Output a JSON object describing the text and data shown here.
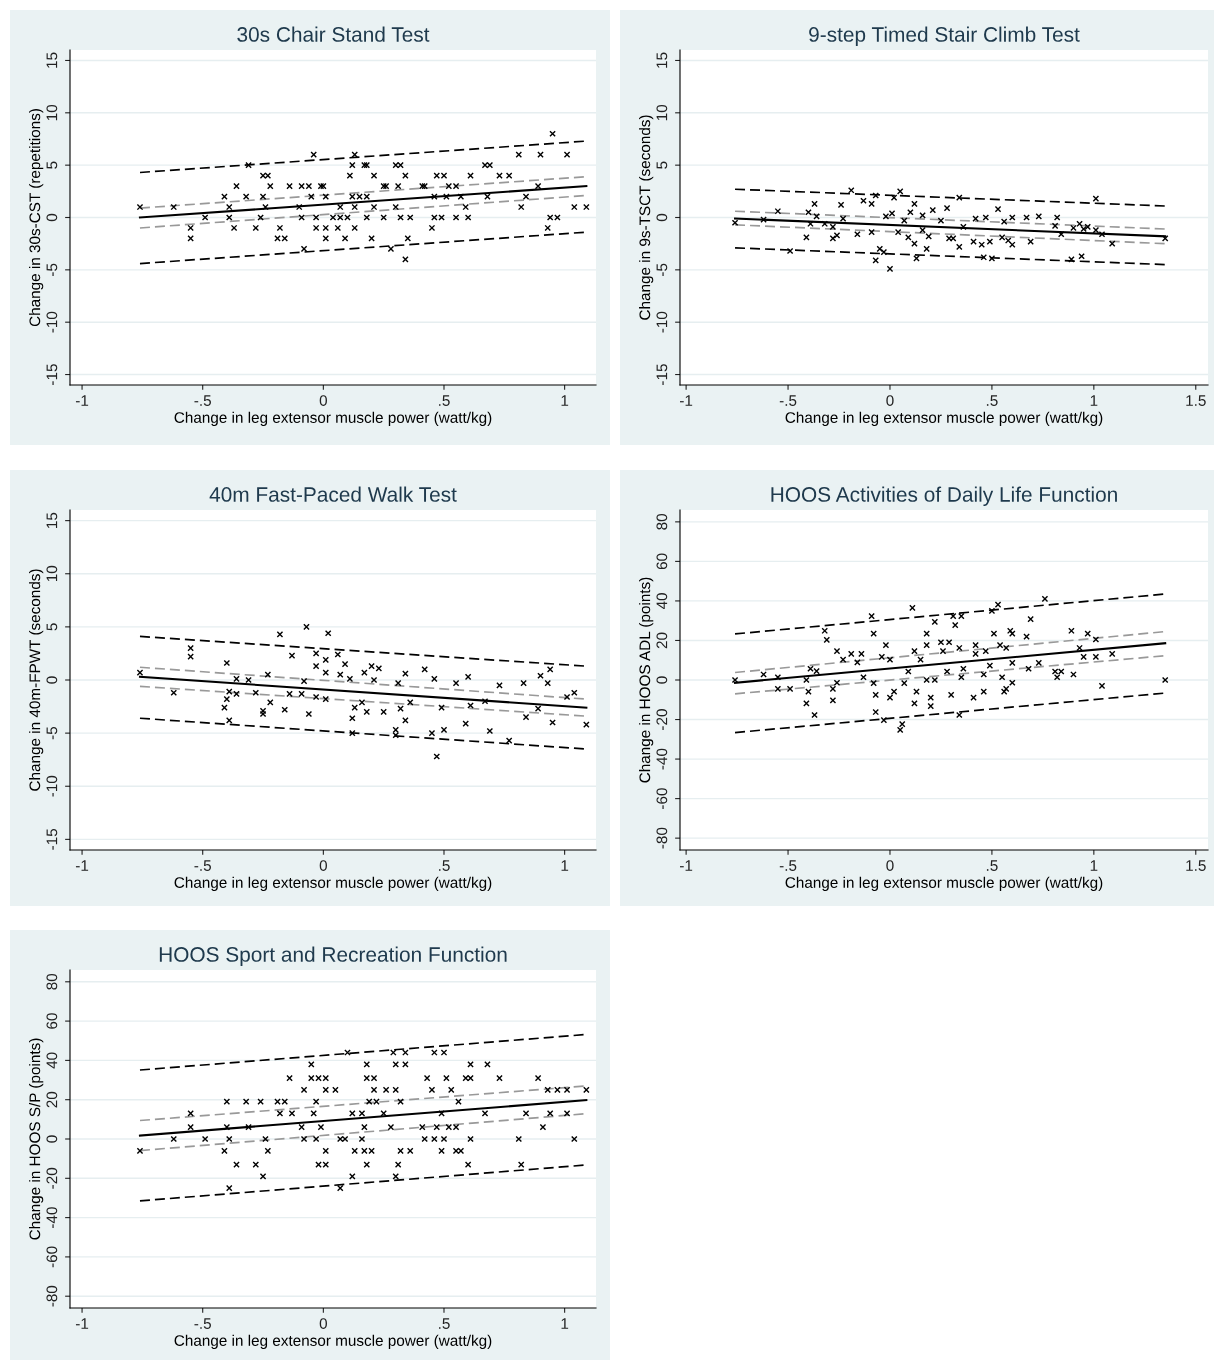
{
  "chart_data": [
    {
      "type": "scatter",
      "title": "30s Chair Stand Test",
      "xlabel": "Change in leg extensor muscle power (watt/kg)",
      "ylabel": "Change in 30s-CST (repetitions)",
      "xlim": [
        -1.05,
        1.13
      ],
      "ylim": [
        -16,
        16
      ],
      "xticks": [
        {
          "value": -1,
          "label": "-1"
        },
        {
          "value": -0.5,
          "label": "-.5"
        },
        0,
        {
          "value": 0.5,
          "label": ".5"
        },
        1
      ],
      "yticks": [
        -15,
        -10,
        -5,
        0,
        5,
        10,
        15
      ],
      "grid": "y",
      "series": [
        {
          "type": "scatter",
          "color": "#000000",
          "marker": "cross",
          "x": [
            -0.76,
            -0.62,
            -0.55,
            -0.55,
            -0.49,
            -0.41,
            -0.39,
            -0.39,
            -0.37,
            -0.36,
            -0.32,
            -0.31,
            -0.28,
            -0.26,
            -0.25,
            -0.25,
            -0.23,
            -0.22,
            -0.24,
            -0.19,
            -0.16,
            -0.18,
            -0.14,
            -0.1,
            -0.09,
            -0.09,
            -0.08,
            -0.06,
            -0.05,
            -0.04,
            -0.03,
            -0.03,
            -0.01,
            0.0,
            0.01,
            0.01,
            0.01,
            0.04,
            0.06,
            0.07,
            0.07,
            0.09,
            0.1,
            0.11,
            0.12,
            0.13,
            0.12,
            0.13,
            0.13,
            0.15,
            0.17,
            0.18,
            0.18,
            0.18,
            0.2,
            0.21,
            0.21,
            0.25,
            0.25,
            0.26,
            0.28,
            0.3,
            0.3,
            0.32,
            0.31,
            0.32,
            0.34,
            0.35,
            0.34,
            0.36,
            0.41,
            0.42,
            0.45,
            0.46,
            0.46,
            0.47,
            0.5,
            0.49,
            0.51,
            0.52,
            0.55,
            0.55,
            0.57,
            0.59,
            0.6,
            0.61,
            0.67,
            0.69,
            0.68,
            0.73,
            0.77,
            0.81,
            0.82,
            0.84,
            0.89,
            0.9,
            0.93,
            0.94,
            0.95,
            0.97,
            1.01,
            1.04,
            1.09
          ],
          "values": [
            1,
            1,
            -1,
            -2,
            0,
            2,
            0,
            1,
            -1,
            3,
            2,
            5,
            -1,
            0,
            2,
            4,
            4,
            3,
            1,
            -2,
            -2,
            -1,
            3,
            1,
            3,
            0,
            -3,
            3,
            2,
            6,
            0,
            -1,
            3,
            3,
            -1,
            -2,
            2,
            0,
            -1,
            0,
            1,
            -2,
            0,
            4,
            5,
            6,
            2,
            1,
            -1,
            2,
            5,
            5,
            2,
            0,
            -2,
            1,
            4,
            0,
            3,
            3,
            -3,
            1,
            5,
            5,
            3,
            0,
            4,
            -2,
            -4,
            0,
            3,
            3,
            -1,
            0,
            2,
            4,
            4,
            0,
            2,
            3,
            3,
            0,
            2,
            1,
            0,
            4,
            5,
            5,
            2,
            4,
            4,
            6,
            1,
            2,
            3,
            6,
            -1,
            0,
            8,
            0,
            6,
            1,
            1
          ]
        },
        {
          "type": "line",
          "color": "#000000",
          "line_style": "solid",
          "x": [
            -0.76,
            1.09
          ],
          "values": [
            0.0,
            3.0
          ]
        },
        {
          "type": "line",
          "color": "#999999",
          "line_style": "dashed",
          "x": [
            -0.76,
            1.09
          ],
          "values": [
            0.9,
            3.9
          ]
        },
        {
          "type": "line",
          "color": "#999999",
          "line_style": "dashed",
          "x": [
            -0.76,
            1.09
          ],
          "values": [
            -1.0,
            2.1
          ]
        },
        {
          "type": "line",
          "color": "#000000",
          "line_style": "dashed",
          "x": [
            -0.76,
            1.09
          ],
          "values": [
            4.3,
            7.3
          ]
        },
        {
          "type": "line",
          "color": "#000000",
          "line_style": "dashed",
          "x": [
            -0.76,
            1.09
          ],
          "values": [
            -4.4,
            -1.4
          ]
        }
      ]
    },
    {
      "type": "scatter",
      "title": "9-step Timed Stair Climb Test",
      "xlabel": "Change in leg extensor muscle power (watt/kg)",
      "ylabel": "Change in 9s-TSCT (seconds)",
      "xlim": [
        -1.03,
        1.56
      ],
      "ylim": [
        -16,
        16
      ],
      "xticks": [
        {
          "value": -1,
          "label": "-1"
        },
        {
          "value": -0.5,
          "label": "-.5"
        },
        0,
        {
          "value": 0.5,
          "label": ".5"
        },
        1,
        1.5
      ],
      "yticks": [
        -15,
        -10,
        -5,
        0,
        5,
        10,
        15
      ],
      "grid": "y",
      "series": [
        {
          "type": "scatter",
          "color": "#000000",
          "marker": "cross",
          "x": [
            -0.76,
            -0.62,
            -0.55,
            -0.49,
            -0.41,
            -0.4,
            -0.39,
            -0.37,
            -0.36,
            -0.32,
            -0.28,
            -0.28,
            -0.26,
            -0.24,
            -0.23,
            -0.19,
            -0.16,
            -0.13,
            -0.09,
            -0.09,
            -0.07,
            -0.07,
            -0.05,
            -0.03,
            -0.02,
            0.0,
            0.01,
            0.02,
            0.04,
            0.05,
            0.07,
            0.09,
            0.1,
            0.12,
            0.12,
            0.13,
            0.16,
            0.16,
            0.18,
            0.19,
            0.21,
            0.25,
            0.28,
            0.29,
            0.31,
            0.34,
            0.34,
            0.36,
            0.41,
            0.42,
            0.45,
            0.46,
            0.47,
            0.49,
            0.5,
            0.53,
            0.55,
            0.56,
            0.58,
            0.6,
            0.6,
            0.67,
            0.69,
            0.73,
            0.81,
            0.82,
            0.84,
            0.89,
            0.9,
            0.93,
            0.94,
            0.95,
            0.97,
            1.01,
            1.01,
            1.04,
            1.09,
            1.35
          ],
          "values": [
            -0.5,
            -0.2,
            0.6,
            -3.2,
            -1.9,
            0.5,
            -0.6,
            1.3,
            0.1,
            -0.6,
            -0.9,
            -2.0,
            -1.7,
            1.2,
            -0.1,
            2.6,
            -1.6,
            1.6,
            1.3,
            -1.4,
            2.1,
            -4.1,
            -3.0,
            -3.3,
            0.1,
            -4.9,
            0.4,
            1.9,
            -1.4,
            2.5,
            -0.3,
            -1.9,
            0.5,
            1.3,
            -2.5,
            -3.9,
            0.2,
            -1.2,
            -3.0,
            -1.8,
            0.7,
            -0.3,
            0.9,
            -2.0,
            -2.0,
            1.9,
            -2.8,
            -0.9,
            -2.3,
            -0.1,
            -2.6,
            -3.8,
            0.0,
            -2.3,
            -3.9,
            0.8,
            -1.9,
            -0.4,
            -2.2,
            0.0,
            -2.6,
            0.0,
            -2.3,
            0.1,
            -0.8,
            0.0,
            -1.6,
            -4.0,
            -1.0,
            -0.6,
            -3.7,
            -1.1,
            -0.9,
            -1.2,
            1.8,
            -1.6,
            -2.5,
            -2.0
          ]
        },
        {
          "type": "line",
          "color": "#000000",
          "line_style": "solid",
          "x": [
            -0.76,
            1.35
          ],
          "values": [
            -0.1,
            -1.8
          ]
        },
        {
          "type": "line",
          "color": "#999999",
          "line_style": "dashed",
          "x": [
            -0.76,
            1.35
          ],
          "values": [
            0.6,
            -1.1
          ]
        },
        {
          "type": "line",
          "color": "#999999",
          "line_style": "dashed",
          "x": [
            -0.76,
            1.35
          ],
          "values": [
            -0.7,
            -2.5
          ]
        },
        {
          "type": "line",
          "color": "#000000",
          "line_style": "dashed",
          "x": [
            -0.76,
            1.35
          ],
          "values": [
            2.7,
            1.1
          ]
        },
        {
          "type": "line",
          "color": "#000000",
          "line_style": "dashed",
          "x": [
            -0.76,
            1.35
          ],
          "values": [
            -2.9,
            -4.5
          ]
        }
      ]
    },
    {
      "type": "scatter",
      "title": "40m Fast-Paced Walk Test",
      "xlabel": "Change in leg extensor muscle power (watt/kg)",
      "ylabel": "Change in 40m-FPWT (seconds)",
      "xlim": [
        -1.05,
        1.13
      ],
      "ylim": [
        -16,
        16
      ],
      "xticks": [
        {
          "value": -1,
          "label": "-1"
        },
        {
          "value": -0.5,
          "label": "-.5"
        },
        0,
        {
          "value": 0.5,
          "label": ".5"
        },
        1
      ],
      "yticks": [
        -15,
        -10,
        -5,
        0,
        5,
        10,
        15
      ],
      "grid": "y",
      "series": [
        {
          "type": "scatter",
          "color": "#000000",
          "marker": "cross",
          "x": [
            -0.76,
            -0.62,
            -0.55,
            -0.55,
            -0.41,
            -0.4,
            -0.4,
            -0.39,
            -0.39,
            -0.36,
            -0.36,
            -0.31,
            -0.28,
            -0.25,
            -0.25,
            -0.23,
            -0.22,
            -0.18,
            -0.16,
            -0.14,
            -0.13,
            -0.09,
            -0.08,
            -0.07,
            -0.06,
            -0.03,
            -0.03,
            -0.03,
            0.01,
            0.01,
            0.01,
            0.02,
            0.06,
            0.07,
            0.09,
            0.11,
            0.12,
            0.12,
            0.13,
            0.16,
            0.17,
            0.18,
            0.2,
            0.21,
            0.23,
            0.25,
            0.3,
            0.3,
            0.31,
            0.32,
            0.34,
            0.34,
            0.36,
            0.42,
            0.45,
            0.46,
            0.47,
            0.49,
            0.5,
            0.55,
            0.59,
            0.6,
            0.61,
            0.67,
            0.69,
            0.73,
            0.77,
            0.83,
            0.84,
            0.89,
            0.9,
            0.93,
            0.94,
            0.95,
            1.01,
            1.04,
            1.09
          ],
          "values": [
            0.7,
            -1.2,
            3.0,
            2.2,
            -2.6,
            -1.8,
            1.6,
            -1.1,
            -3.8,
            0.1,
            -1.3,
            0.0,
            -1.2,
            -2.9,
            -3.2,
            0.5,
            -2.1,
            4.3,
            -2.8,
            -1.3,
            2.3,
            -1.3,
            -0.1,
            5.0,
            -3.2,
            1.3,
            -1.6,
            2.5,
            1.9,
            0.7,
            -1.8,
            4.4,
            2.4,
            0.5,
            1.5,
            0.1,
            -3.6,
            -5.0,
            -2.6,
            -2.1,
            0.7,
            -3.0,
            1.3,
            0.0,
            1.1,
            -3.0,
            -4.7,
            -5.2,
            -0.3,
            -2.7,
            0.6,
            -3.8,
            -2.1,
            1.0,
            -5.0,
            0.1,
            -7.2,
            -2.6,
            -4.7,
            -0.3,
            -4.1,
            0.3,
            -2.4,
            -2.0,
            -4.8,
            -0.5,
            -5.7,
            -0.3,
            -3.5,
            -2.7,
            0.4,
            -0.3,
            1.0,
            -4.0,
            -1.6,
            -1.2,
            -4.2
          ]
        },
        {
          "type": "line",
          "color": "#000000",
          "line_style": "solid",
          "x": [
            -0.76,
            1.09
          ],
          "values": [
            0.3,
            -2.6
          ]
        },
        {
          "type": "line",
          "color": "#999999",
          "line_style": "dashed",
          "x": [
            -0.76,
            1.09
          ],
          "values": [
            1.2,
            -1.8
          ]
        },
        {
          "type": "line",
          "color": "#999999",
          "line_style": "dashed",
          "x": [
            -0.76,
            1.09
          ],
          "values": [
            -0.6,
            -3.4
          ]
        },
        {
          "type": "line",
          "color": "#000000",
          "line_style": "dashed",
          "x": [
            -0.76,
            1.09
          ],
          "values": [
            4.1,
            1.3
          ]
        },
        {
          "type": "line",
          "color": "#000000",
          "line_style": "dashed",
          "x": [
            -0.76,
            1.09
          ],
          "values": [
            -3.6,
            -6.5
          ]
        }
      ]
    },
    {
      "type": "scatter",
      "title": "HOOS Activities of Daily Life Function",
      "xlabel": "Change in leg extensor muscle power (watt/kg)",
      "ylabel": "Change in HOOS ADL (points)",
      "xlim": [
        -1.03,
        1.56
      ],
      "ylim": [
        -86,
        86
      ],
      "xticks": [
        {
          "value": -1,
          "label": "-1"
        },
        {
          "value": -0.5,
          "label": "-.5"
        },
        0,
        {
          "value": 0.5,
          "label": ".5"
        },
        1,
        1.5
      ],
      "yticks": [
        -80,
        -60,
        -40,
        -20,
        0,
        20,
        40,
        60,
        80
      ],
      "grid": "y",
      "series": [
        {
          "type": "scatter",
          "color": "#000000",
          "marker": "cross",
          "x": [
            -0.76,
            -0.62,
            -0.55,
            -0.55,
            -0.49,
            -0.41,
            -0.41,
            -0.4,
            -0.39,
            -0.37,
            -0.36,
            -0.32,
            -0.31,
            -0.28,
            -0.28,
            -0.26,
            -0.26,
            -0.23,
            -0.19,
            -0.16,
            -0.14,
            -0.13,
            -0.09,
            -0.08,
            -0.08,
            -0.07,
            -0.07,
            -0.04,
            -0.03,
            -0.02,
            0.0,
            0.0,
            0.02,
            0.05,
            0.06,
            0.07,
            0.09,
            0.11,
            0.12,
            0.12,
            0.13,
            0.15,
            0.18,
            0.18,
            0.18,
            0.2,
            0.2,
            0.22,
            0.22,
            0.25,
            0.26,
            0.28,
            0.29,
            0.3,
            0.31,
            0.32,
            0.34,
            0.35,
            0.35,
            0.36,
            0.34,
            0.41,
            0.42,
            0.42,
            0.46,
            0.46,
            0.47,
            0.49,
            0.5,
            0.51,
            0.53,
            0.54,
            0.55,
            0.56,
            0.57,
            0.57,
            0.59,
            0.6,
            0.6,
            0.6,
            0.67,
            0.68,
            0.69,
            0.73,
            0.76,
            0.81,
            0.82,
            0.84,
            0.89,
            0.9,
            0.93,
            0.95,
            0.97,
            1.01,
            1.01,
            1.04,
            1.09,
            1.35
          ],
          "values": [
            0,
            2.8,
            1.4,
            -4.5,
            -4.5,
            -11.8,
            0,
            -5.9,
            5.7,
            -17.7,
            4.5,
            24.9,
            20.3,
            -4.5,
            -10.3,
            14.6,
            -1.4,
            10.3,
            13.2,
            8.9,
            13.2,
            1.4,
            32.3,
            23.5,
            -1.6,
            -7.5,
            -16.2,
            11.7,
            -20.3,
            17.6,
            10.3,
            -8.9,
            -5.9,
            -25.2,
            -22.3,
            -1.6,
            4.3,
            36.5,
            14.6,
            -11.8,
            -5.9,
            10.3,
            23.5,
            0,
            17.6,
            -8.9,
            -13.2,
            0,
            29.4,
            19.1,
            14.6,
            4.3,
            19.1,
            -7.5,
            32.3,
            27.8,
            16.2,
            1.4,
            32.3,
            5.7,
            -17.7,
            -8.9,
            13.2,
            17.6,
            2.8,
            -5.9,
            14.6,
            7.3,
            35.0,
            23.5,
            38.1,
            17.6,
            1.4,
            -5.9,
            -4.5,
            16.2,
            24.9,
            -1.4,
            23.5,
            8.7,
            21.9,
            5.7,
            30.8,
            8.7,
            41.0,
            4.3,
            1.4,
            4.3,
            24.9,
            2.8,
            16.2,
            11.7,
            23.5,
            11.7,
            20.5,
            -3.0,
            13.2,
            0
          ]
        },
        {
          "type": "line",
          "color": "#000000",
          "line_style": "solid",
          "x": [
            -0.76,
            1.35
          ],
          "values": [
            -1.4,
            18.6
          ]
        },
        {
          "type": "line",
          "color": "#999999",
          "line_style": "dashed",
          "x": [
            -0.76,
            1.35
          ],
          "values": [
            3.8,
            24.5
          ]
        },
        {
          "type": "line",
          "color": "#999999",
          "line_style": "dashed",
          "x": [
            -0.76,
            1.35
          ],
          "values": [
            -7.0,
            12.3
          ]
        },
        {
          "type": "line",
          "color": "#000000",
          "line_style": "dashed",
          "x": [
            -0.76,
            1.35
          ],
          "values": [
            23.3,
            43.5
          ]
        },
        {
          "type": "line",
          "color": "#000000",
          "line_style": "dashed",
          "x": [
            -0.76,
            1.35
          ],
          "values": [
            -26.6,
            -6.6
          ]
        }
      ]
    },
    {
      "type": "scatter",
      "title": "HOOS Sport and Recreation Function",
      "xlabel": "Change in leg extensor muscle power (watt/kg)",
      "ylabel": "Change in HOOS S/P (points)",
      "xlim": [
        -1.05,
        1.13
      ],
      "ylim": [
        -86,
        86
      ],
      "xticks": [
        {
          "value": -1,
          "label": "-1"
        },
        {
          "value": -0.5,
          "label": "-.5"
        },
        0,
        {
          "value": 0.5,
          "label": ".5"
        },
        1
      ],
      "yticks": [
        -80,
        -60,
        -40,
        -20,
        0,
        20,
        40,
        60,
        80
      ],
      "grid": "y",
      "series": [
        {
          "type": "scatter",
          "color": "#000000",
          "marker": "cross",
          "x": [
            -0.76,
            -0.62,
            -0.55,
            -0.55,
            -0.49,
            -0.41,
            -0.4,
            -0.4,
            -0.39,
            -0.39,
            -0.36,
            -0.32,
            -0.31,
            -0.28,
            -0.26,
            -0.25,
            -0.24,
            -0.23,
            -0.19,
            -0.18,
            -0.16,
            -0.14,
            -0.13,
            -0.09,
            -0.08,
            -0.08,
            -0.05,
            -0.05,
            -0.04,
            -0.03,
            -0.03,
            -0.02,
            -0.02,
            -0.01,
            0.01,
            0.01,
            0.01,
            0.01,
            0.05,
            0.07,
            0.07,
            0.1,
            0.09,
            0.12,
            0.12,
            0.13,
            0.16,
            0.16,
            0.17,
            0.17,
            0.18,
            0.18,
            0.18,
            0.19,
            0.2,
            0.21,
            0.21,
            0.22,
            0.25,
            0.26,
            0.28,
            0.29,
            0.3,
            0.3,
            0.3,
            0.31,
            0.32,
            0.32,
            0.34,
            0.34,
            0.36,
            0.41,
            0.42,
            0.43,
            0.45,
            0.46,
            0.46,
            0.47,
            0.49,
            0.49,
            0.5,
            0.5,
            0.51,
            0.52,
            0.53,
            0.55,
            0.55,
            0.56,
            0.57,
            0.59,
            0.6,
            0.61,
            0.61,
            0.61,
            0.67,
            0.68,
            0.73,
            0.81,
            0.82,
            0.84,
            0.89,
            0.91,
            0.93,
            0.94,
            0.97,
            1.01,
            1.01,
            1.04,
            1.09
          ],
          "values": [
            -6,
            0,
            13,
            6,
            0,
            -6,
            6,
            19,
            0,
            -25,
            -13,
            19,
            6,
            -13,
            19,
            -19,
            0,
            -6,
            19,
            13,
            19,
            31,
            13,
            6,
            0,
            25,
            38,
            31,
            13,
            0,
            19,
            -13,
            31,
            6,
            25,
            -6,
            31,
            -13,
            25,
            -25,
            0,
            44,
            0,
            13,
            -19,
            -6,
            13,
            0,
            6,
            -6,
            38,
            -13,
            31,
            19,
            -6,
            25,
            31,
            19,
            13,
            25,
            6,
            44,
            38,
            25,
            -19,
            -13,
            19,
            -6,
            44,
            38,
            -6,
            6,
            0,
            31,
            25,
            44,
            0,
            6,
            -6,
            13,
            0,
            44,
            31,
            6,
            25,
            -6,
            6,
            19,
            -6,
            31,
            -13,
            38,
            31,
            0,
            13,
            38,
            31,
            0,
            -13,
            13,
            31,
            6,
            25,
            13,
            25,
            13,
            25,
            0,
            25
          ]
        },
        {
          "type": "line",
          "color": "#000000",
          "line_style": "solid",
          "x": [
            -0.76,
            1.09
          ],
          "values": [
            1.7,
            19.8
          ]
        },
        {
          "type": "line",
          "color": "#999999",
          "line_style": "dashed",
          "x": [
            -0.76,
            1.09
          ],
          "values": [
            9.4,
            27.0
          ]
        },
        {
          "type": "line",
          "color": "#999999",
          "line_style": "dashed",
          "x": [
            -0.76,
            1.09
          ],
          "values": [
            -5.9,
            12.9
          ]
        },
        {
          "type": "line",
          "color": "#000000",
          "line_style": "dashed",
          "x": [
            -0.76,
            1.09
          ],
          "values": [
            35.1,
            53.2
          ]
        },
        {
          "type": "line",
          "color": "#000000",
          "line_style": "dashed",
          "x": [
            -0.76,
            1.09
          ],
          "values": [
            -31.5,
            -13.2
          ]
        }
      ]
    }
  ]
}
